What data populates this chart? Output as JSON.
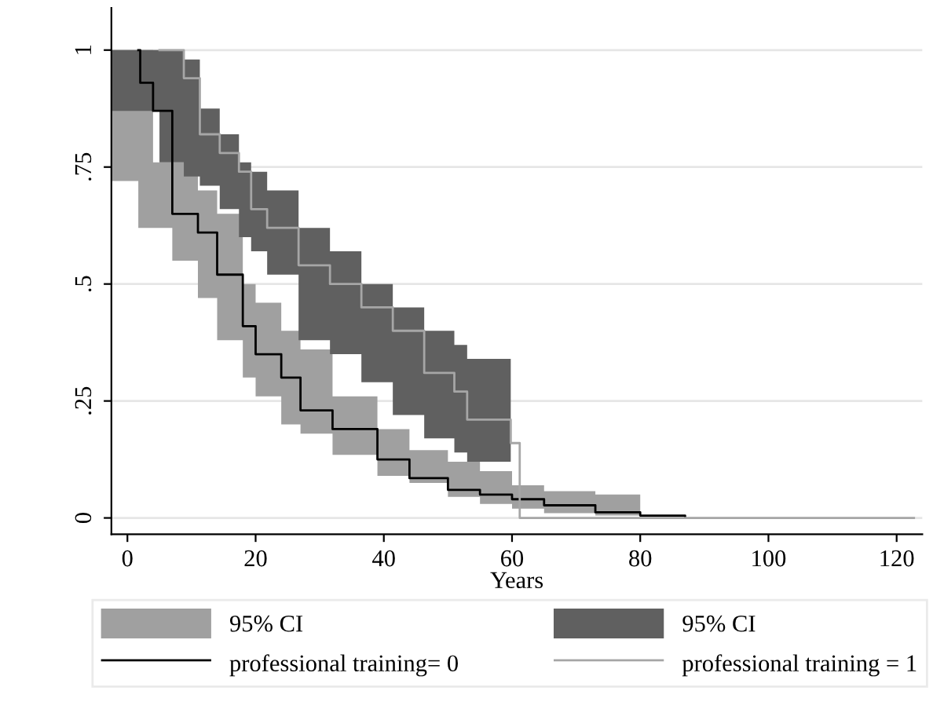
{
  "chart_data": {
    "type": "step",
    "xlabel": "Years",
    "xlim": [
      -2.5,
      124
    ],
    "xticks": [
      0,
      20,
      40,
      60,
      80,
      100,
      120
    ],
    "ylim": [
      -0.035,
      1.09
    ],
    "yticks": [
      {
        "value": 0,
        "label": "0"
      },
      {
        "value": 0.25,
        "label": ".25"
      },
      {
        "value": 0.5,
        "label": ".5"
      },
      {
        "value": 0.75,
        "label": ".75"
      },
      {
        "value": 1,
        "label": "1"
      }
    ],
    "grid": "y",
    "legend": "bottom",
    "annotations": [
      "95% CI",
      "95% CI"
    ],
    "series": [
      {
        "name": "professional training= 0",
        "color": "#000000",
        "x": [
          -2.5,
          1.7,
          2,
          4,
          7,
          11,
          14,
          18,
          20,
          24,
          27,
          32,
          39,
          44,
          50,
          55,
          60,
          65,
          73,
          80,
          87
        ],
        "values": [
          null,
          1,
          0.93,
          0.87,
          0.65,
          0.61,
          0.52,
          0.41,
          0.35,
          0.3,
          0.23,
          0.19,
          0.125,
          0.085,
          0.06,
          0.05,
          0.04,
          0.027,
          0.012,
          0.005,
          0
        ],
        "lower": [
          0.72,
          0.62,
          0.62,
          0.62,
          0.55,
          0.47,
          0.38,
          0.3,
          0.26,
          0.2,
          0.18,
          0.135,
          0.09,
          0.075,
          0.045,
          0.03,
          0.02,
          0.01,
          0.005,
          0,
          null
        ],
        "upper": [
          1.0,
          1.0,
          1.0,
          0.76,
          0.76,
          0.7,
          0.65,
          0.5,
          0.46,
          0.4,
          0.36,
          0.26,
          0.19,
          0.145,
          0.12,
          0.1,
          0.07,
          0.057,
          0.05,
          0.04,
          null
        ]
      },
      {
        "name": "professional training = 1",
        "color": "#a6a6a6",
        "x": [
          -2.5,
          5,
          8.8,
          11.3,
          14.4,
          17.4,
          19.3,
          21.8,
          26.7,
          31.6,
          36.5,
          41.4,
          46.3,
          51,
          53,
          59.8,
          61.2,
          122.7
        ],
        "values": [
          null,
          1,
          0.94,
          0.82,
          0.78,
          0.74,
          0.66,
          0.62,
          0.54,
          0.5,
          0.45,
          0.4,
          0.31,
          0.27,
          0.21,
          0.16,
          0,
          0
        ],
        "lower": [
          0.87,
          0.76,
          0.73,
          0.71,
          0.66,
          0.6,
          0.57,
          0.52,
          0.38,
          0.35,
          0.29,
          0.22,
          0.17,
          0.14,
          0.12,
          0.12,
          null,
          null
        ],
        "upper": [
          1.0,
          1.0,
          0.98,
          0.875,
          0.82,
          0.76,
          0.74,
          0.7,
          0.62,
          0.57,
          0.5,
          0.45,
          0.4,
          0.37,
          0.34,
          0.3,
          null,
          null
        ]
      }
    ]
  }
}
